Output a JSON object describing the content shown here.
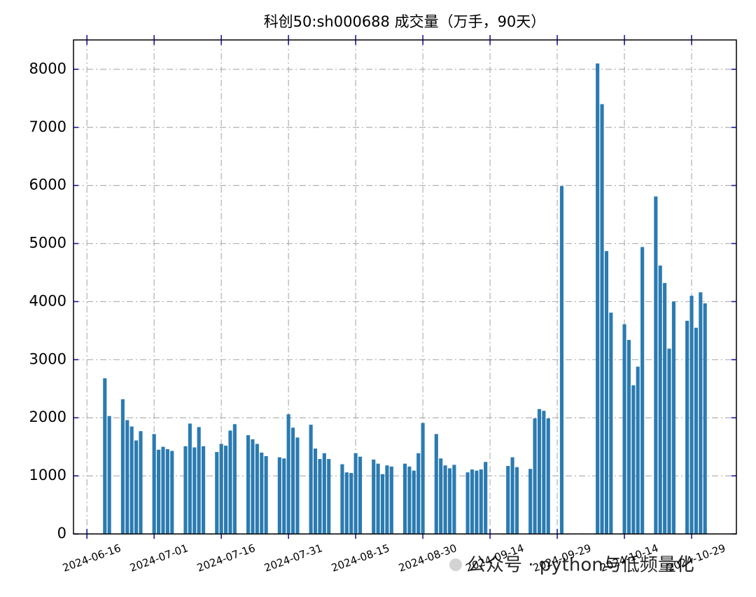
{
  "chart_data": {
    "type": "bar",
    "title": "科创50:sh000688 成交量（万手，90天）",
    "watermark": "公众号 · python与低频量化",
    "x": [
      "2024-06-20",
      "2024-06-21",
      "2024-06-24",
      "2024-06-25",
      "2024-06-26",
      "2024-06-27",
      "2024-06-28",
      "2024-07-01",
      "2024-07-02",
      "2024-07-03",
      "2024-07-04",
      "2024-07-05",
      "2024-07-08",
      "2024-07-09",
      "2024-07-10",
      "2024-07-11",
      "2024-07-12",
      "2024-07-15",
      "2024-07-16",
      "2024-07-17",
      "2024-07-18",
      "2024-07-19",
      "2024-07-22",
      "2024-07-23",
      "2024-07-24",
      "2024-07-25",
      "2024-07-26",
      "2024-07-29",
      "2024-07-30",
      "2024-07-31",
      "2024-08-01",
      "2024-08-02",
      "2024-08-05",
      "2024-08-06",
      "2024-08-07",
      "2024-08-08",
      "2024-08-09",
      "2024-08-12",
      "2024-08-13",
      "2024-08-14",
      "2024-08-15",
      "2024-08-16",
      "2024-08-19",
      "2024-08-20",
      "2024-08-21",
      "2024-08-22",
      "2024-08-23",
      "2024-08-26",
      "2024-08-27",
      "2024-08-28",
      "2024-08-29",
      "2024-08-30",
      "2024-09-02",
      "2024-09-03",
      "2024-09-04",
      "2024-09-05",
      "2024-09-06",
      "2024-09-09",
      "2024-09-10",
      "2024-09-11",
      "2024-09-12",
      "2024-09-13",
      "2024-09-18",
      "2024-09-19",
      "2024-09-20",
      "2024-09-23",
      "2024-09-24",
      "2024-09-25",
      "2024-09-26",
      "2024-09-27",
      "2024-09-30",
      "2024-10-08",
      "2024-10-09",
      "2024-10-10",
      "2024-10-11",
      "2024-10-14",
      "2024-10-15",
      "2024-10-16",
      "2024-10-17",
      "2024-10-18",
      "2024-10-21",
      "2024-10-22",
      "2024-10-23",
      "2024-10-24",
      "2024-10-25",
      "2024-10-28",
      "2024-10-29",
      "2024-10-30",
      "2024-10-31",
      "2024-11-01"
    ],
    "values": [
      2680,
      2030,
      2320,
      1960,
      1850,
      1610,
      1770,
      1720,
      1450,
      1500,
      1460,
      1430,
      1510,
      1900,
      1490,
      1840,
      1510,
      1410,
      1550,
      1520,
      1780,
      1890,
      1700,
      1630,
      1550,
      1400,
      1340,
      1320,
      1300,
      2060,
      1830,
      1660,
      1880,
      1470,
      1290,
      1390,
      1290,
      1200,
      1060,
      1050,
      1390,
      1330,
      1280,
      1210,
      1030,
      1180,
      1160,
      1210,
      1160,
      1090,
      1390,
      1910,
      1720,
      1300,
      1180,
      1130,
      1190,
      1060,
      1110,
      1090,
      1110,
      1240,
      1170,
      1320,
      1150,
      1120,
      1990,
      2150,
      2120,
      1990,
      5990,
      8100,
      7400,
      4870,
      3810,
      3610,
      3340,
      2560,
      2880,
      4940,
      5810,
      4620,
      4320,
      3190,
      4000,
      3670,
      4100,
      3550,
      4160,
      3970
    ],
    "color": "#2b7bb1",
    "xlim": [
      "2024-06-13",
      "2024-11-08"
    ],
    "xticks": [
      "2024-06-16",
      "2024-07-01",
      "2024-07-16",
      "2024-07-31",
      "2024-08-15",
      "2024-08-30",
      "2024-09-14",
      "2024-09-29",
      "2024-10-14",
      "2024-10-29"
    ],
    "ylim": [
      0,
      8505
    ],
    "yticks": [
      0,
      1000,
      2000,
      3000,
      4000,
      5000,
      6000,
      7000,
      8000
    ],
    "grid": true
  }
}
